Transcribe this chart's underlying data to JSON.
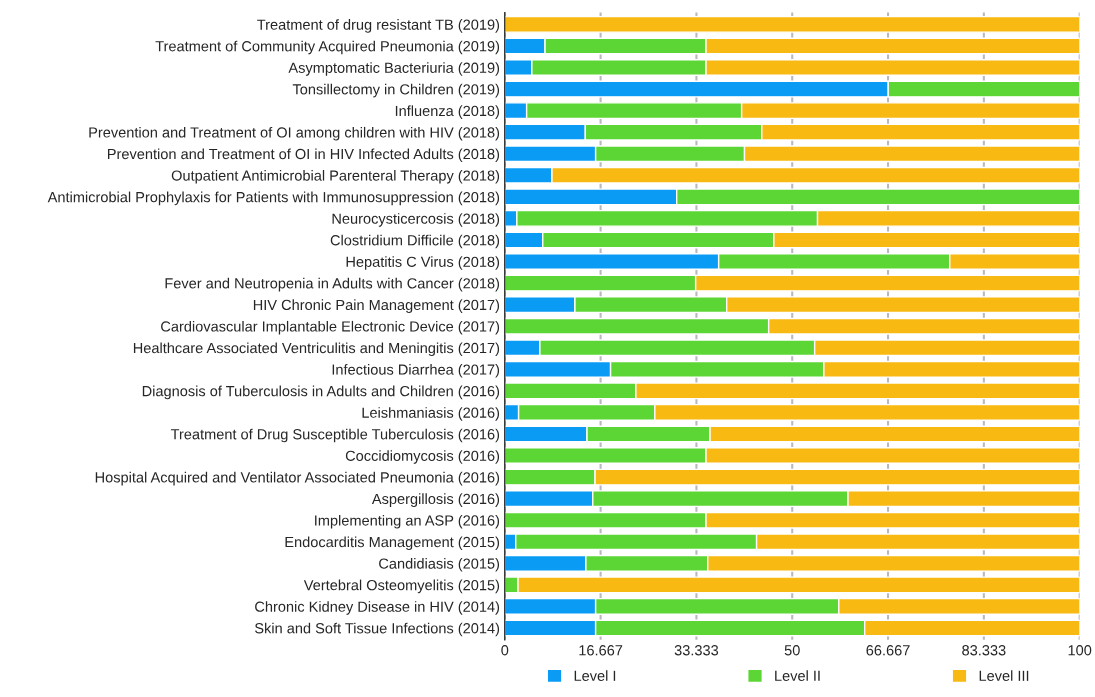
{
  "chart_data": {
    "type": "bar",
    "orientation": "horizontal",
    "stacked": true,
    "categories": [
      "Treatment of drug resistant TB (2019)",
      "Treatment of Community Acquired Pneumonia (2019)",
      "Asymptomatic Bacteriuria (2019)",
      "Tonsillectomy in Children (2019)",
      "Influenza (2018)",
      "Prevention and Treatment of OI among children with HIV (2018)",
      "Prevention and Treatment of OI in HIV Infected Adults (2018)",
      "Outpatient Antimicrobial Parenteral Therapy (2018)",
      "Antimicrobial Prophylaxis for Patients with Immunosuppression (2018)",
      "Neurocysticercosis (2018)",
      "Clostridium Difficile (2018)",
      "Hepatitis C Virus (2018)",
      "Fever and Neutropenia in Adults with Cancer (2018)",
      "HIV Chronic Pain Management (2017)",
      "Cardiovascular Implantable Electronic Device (2017)",
      "Healthcare Associated Ventriculitis and Meningitis (2017)",
      "Infectious Diarrhea (2017)",
      "Diagnosis of Tuberculosis in Adults and Children (2016)",
      "Leishmaniasis (2016)",
      "Treatment of Drug Susceptible Tuberculosis (2016)",
      "Coccidiomycosis (2016)",
      "Hospital Acquired and Ventilator Associated Pneumonia (2016)",
      "Aspergillosis (2016)",
      "Implementing an ASP (2016)",
      "Endocarditis Management (2015)",
      "Candidiasis (2015)",
      "Vertebral Osteomyelitis (2015)",
      "Chronic Kidney Disease in HIV (2014)",
      "Skin and Soft Tissue Infections (2014)"
    ],
    "series": [
      {
        "name": "Level I",
        "color": "#0a9cf5",
        "values": [
          null,
          7,
          4.7,
          66.7,
          3.8,
          14,
          15.8,
          8.2,
          29.9,
          2.1,
          6.6,
          37.2,
          null,
          12.2,
          null,
          6.1,
          18.4,
          null,
          2.4,
          14.3,
          null,
          null,
          15.3,
          null,
          1.9,
          14.1,
          null,
          15.8,
          15.8
        ]
      },
      {
        "name": "Level II",
        "color": "#5cd635",
        "values": [
          null,
          28,
          30.3,
          33.3,
          37.4,
          30.7,
          25.9,
          null,
          70.1,
          52.3,
          40.2,
          40.2,
          33.2,
          26.4,
          45.9,
          47.8,
          37.1,
          22.8,
          23.7,
          21.4,
          35,
          15.7,
          44.4,
          35,
          41.9,
          21.2,
          2.3,
          42.3,
          46.8
        ]
      },
      {
        "name": "Level III",
        "color": "#f8b912",
        "values": [
          100,
          65,
          65,
          null,
          58.8,
          55.3,
          58.3,
          91.8,
          null,
          45.6,
          53.2,
          22.6,
          66.8,
          61.4,
          54.1,
          46.1,
          44.5,
          77.2,
          73.9,
          64.3,
          65,
          84.3,
          40.3,
          65,
          56.2,
          64.7,
          97.7,
          41.9,
          37.4
        ]
      }
    ],
    "xlim": [
      0,
      100
    ],
    "xticks": [
      0,
      16.667,
      33.333,
      50,
      66.667,
      83.333,
      100
    ],
    "grid": "x",
    "legend": "bottom"
  }
}
